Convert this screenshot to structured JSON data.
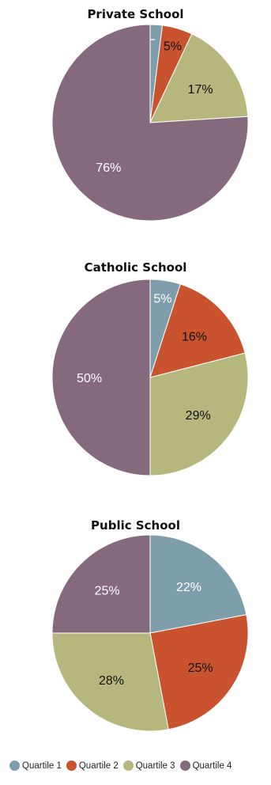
{
  "chart_data": [
    {
      "type": "pie",
      "title": "Private School",
      "categories": [
        "Quartile 1",
        "Quartile 2",
        "Quartile 3",
        "Quartile 4"
      ],
      "values": [
        2,
        5,
        17,
        76
      ],
      "labels": [
        "2%",
        "5%",
        "17%",
        "76%"
      ]
    },
    {
      "type": "pie",
      "title": "Catholic School",
      "categories": [
        "Quartile 1",
        "Quartile 2",
        "Quartile 3",
        "Quartile 4"
      ],
      "values": [
        5,
        16,
        29,
        50
      ],
      "labels": [
        "5%",
        "16%",
        "29%",
        "50%"
      ]
    },
    {
      "type": "pie",
      "title": "Public School",
      "categories": [
        "Quartile 1",
        "Quartile 2",
        "Quartile 3",
        "Quartile 4"
      ],
      "values": [
        22,
        25,
        28,
        25
      ],
      "labels": [
        "22%",
        "25%",
        "28%",
        "25%"
      ]
    }
  ],
  "legend": {
    "placement": "bottom",
    "items": [
      {
        "label": "Quartile 1",
        "color": "#7e9eac"
      },
      {
        "label": "Quartile 2",
        "color": "#c8532e"
      },
      {
        "label": "Quartile 3",
        "color": "#b6b77c"
      },
      {
        "label": "Quartile 4",
        "color": "#85697d"
      }
    ]
  },
  "label_colors": [
    "#ffffff",
    "#111111",
    "#111111",
    "#ffffff"
  ]
}
